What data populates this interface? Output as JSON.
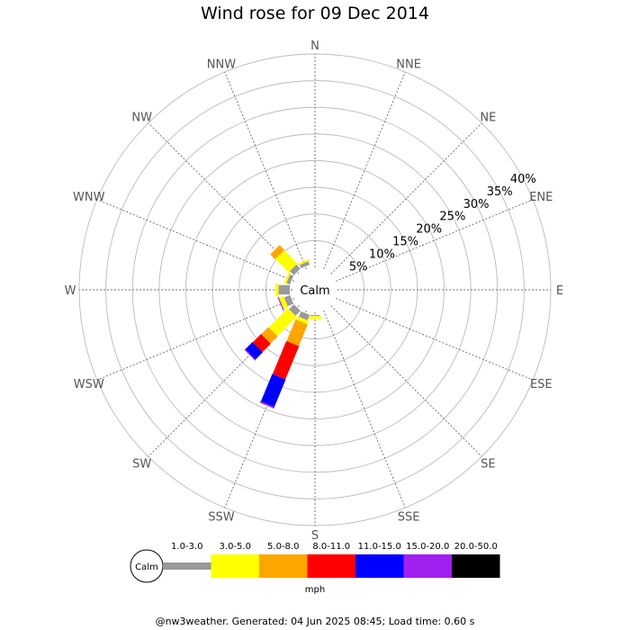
{
  "chart_data": {
    "type": "windrose",
    "title": "Wind rose for 09 Dec 2014",
    "directions": [
      "N",
      "NNE",
      "NE",
      "ENE",
      "E",
      "ESE",
      "SE",
      "SSE",
      "S",
      "SSW",
      "SW",
      "WSW",
      "W",
      "WNW",
      "NW",
      "NNW"
    ],
    "radial_ticks": [
      "5%",
      "10%",
      "15%",
      "20%",
      "25%",
      "30%",
      "35%",
      "40%"
    ],
    "radial_max": 40,
    "calm_label": "Calm",
    "unit": "mph",
    "speed_bins": [
      {
        "label": "1.0-3.0",
        "color": "#999999"
      },
      {
        "label": "3.0-5.0",
        "color": "#ffff00"
      },
      {
        "label": "5.0-8.0",
        "color": "#ffa500"
      },
      {
        "label": "8.0-11.0",
        "color": "#ff0000"
      },
      {
        "label": "11.0-15.0",
        "color": "#0000ff"
      },
      {
        "label": "15.0-20.0",
        "color": "#a020f0"
      },
      {
        "label": "20.0-50.0",
        "color": "#000000"
      }
    ],
    "frequencies_pct": {
      "N": [
        0,
        0,
        0,
        0,
        0,
        0,
        0
      ],
      "NNE": [
        0,
        0,
        0,
        0,
        0,
        0,
        0
      ],
      "NE": [
        0,
        0,
        0,
        0,
        0,
        0,
        0
      ],
      "ENE": [
        0,
        0,
        0,
        0,
        0,
        0,
        0
      ],
      "E": [
        0,
        0,
        0,
        0,
        0,
        0,
        0
      ],
      "ESE": [
        0,
        0,
        0,
        0,
        0,
        0,
        0
      ],
      "SE": [
        0,
        0,
        0,
        0,
        0,
        0,
        0
      ],
      "SSE": [
        0,
        0,
        0,
        0,
        0,
        0,
        0
      ],
      "S": [
        0.2,
        0.6,
        0,
        0,
        0,
        0,
        0
      ],
      "SSW": [
        1.1,
        0.7,
        4.4,
        6.7,
        5.6,
        0.3,
        0
      ],
      "SW": [
        1.3,
        5.1,
        1.9,
        2.2,
        1.9,
        0.2,
        0
      ],
      "WSW": [
        1.2,
        0.9,
        0,
        0,
        0,
        0.2,
        0
      ],
      "W": [
        2.1,
        0.6,
        0,
        0,
        0,
        0,
        0
      ],
      "WNW": [
        0.7,
        0.4,
        0,
        0,
        0,
        0,
        0
      ],
      "NW": [
        1.1,
        3.5,
        1.3,
        0,
        0,
        0,
        0
      ],
      "NNW": [
        0.7,
        0.3,
        0,
        0,
        0,
        0,
        0
      ]
    }
  },
  "footer": "@nw3weather. Generated: 04 Jun 2025 08:45; Load time: 0.60 s"
}
